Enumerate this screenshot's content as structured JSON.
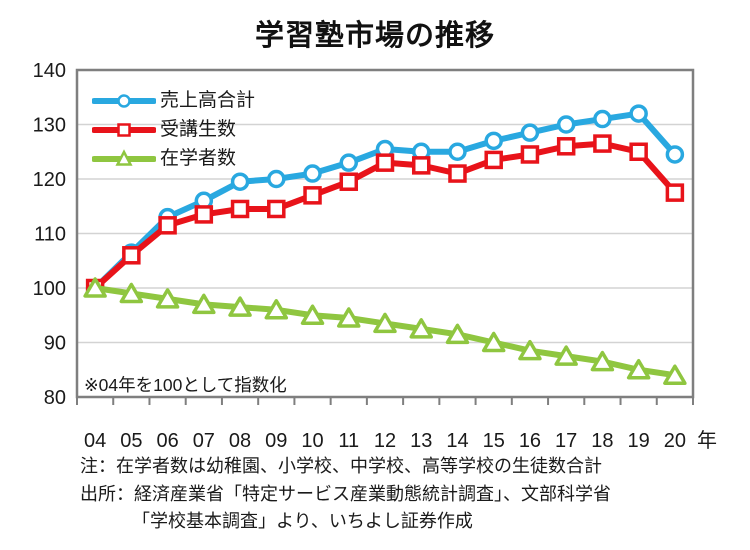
{
  "title": "学習塾市場の推移",
  "chart_data": {
    "type": "line",
    "x": [
      "04",
      "05",
      "06",
      "07",
      "08",
      "09",
      "10",
      "11",
      "12",
      "13",
      "14",
      "15",
      "16",
      "17",
      "18",
      "19",
      "20"
    ],
    "x_axis_suffix": "年",
    "series": [
      {
        "name": "売上高合計",
        "marker": "circle",
        "color": "#29a8e0",
        "values": [
          100,
          106.5,
          113,
          116,
          119.5,
          120,
          121,
          123,
          125.5,
          125,
          125,
          127,
          128.5,
          130,
          131,
          132,
          124.5
        ]
      },
      {
        "name": "受講生数",
        "marker": "square",
        "color": "#e8131a",
        "values": [
          100,
          106,
          111.5,
          113.5,
          114.5,
          114.5,
          117,
          119.5,
          123,
          122.5,
          121,
          123.5,
          124.5,
          126,
          126.5,
          125,
          117.5
        ]
      },
      {
        "name": "在学者数",
        "marker": "triangle",
        "color": "#8fc640",
        "values": [
          100,
          99,
          98,
          97,
          96.5,
          96,
          95,
          94.5,
          93.5,
          92.5,
          91.5,
          90,
          88.5,
          87.5,
          86.5,
          85,
          84
        ]
      }
    ],
    "ylim": [
      80,
      140
    ],
    "yticks": [
      140,
      130,
      120,
      110,
      100,
      90,
      80
    ],
    "grid": "horizontal",
    "legend_position": "inside-top-left",
    "annotation": "※04年を100として指数化"
  },
  "annotation": "※04年を100として指数化",
  "notes": [
    "注：在学者数は幼稚園、小学校、中学校、高等学校の生徒数合計",
    "出所：経済産業省「特定サービス産業動態統計調査」、文部科学省",
    "「学校基本調査」より、いちよし証券作成"
  ],
  "colors": {
    "sales_total": "#29a8e0",
    "students_enrolled": "#e8131a",
    "school_enrollment": "#8fc640",
    "gridline": "#d3d3d3",
    "plot_border": "#7f7f7f",
    "text": "#1a1a1a"
  }
}
